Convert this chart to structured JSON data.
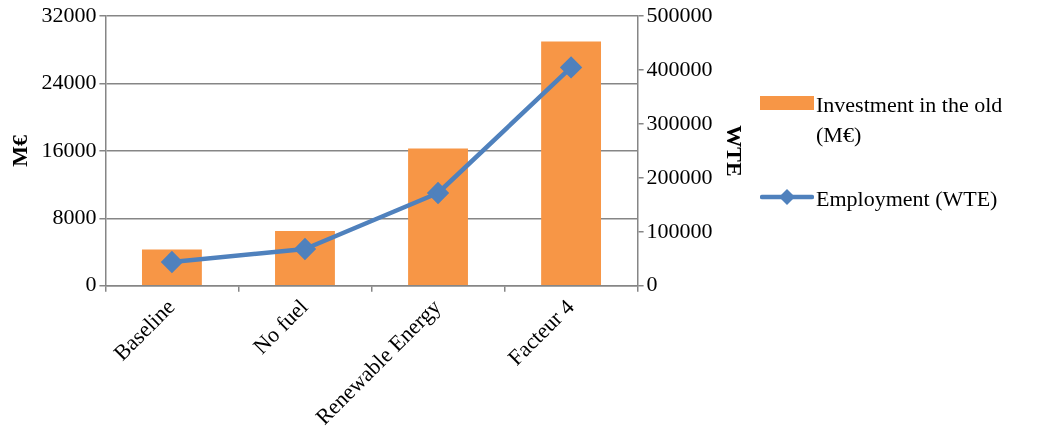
{
  "chart_data": {
    "type": "bar",
    "categories": [
      "Baseline",
      "No fuel",
      "Renewable Energy",
      "Facteur 4"
    ],
    "series": [
      {
        "name": "Investment in the old (M€)",
        "color": "#f79646",
        "values": [
          4300,
          6500,
          16300,
          29000
        ]
      },
      {
        "name": "Employment (WTE)",
        "type": "line",
        "axis": "y2",
        "color": "#4f81bd",
        "values": [
          44000,
          68000,
          172000,
          405000
        ]
      }
    ],
    "ylabel": "M€",
    "y2label": "WTE",
    "ylim": [
      0,
      32000
    ],
    "yticks": [
      0,
      8000,
      16000,
      24000,
      32000
    ],
    "y2lim": [
      0,
      500000
    ],
    "y2ticks": [
      0,
      100000,
      200000,
      300000,
      400000,
      500000
    ],
    "grid": "y",
    "legend": "right",
    "marker": "diamond"
  }
}
